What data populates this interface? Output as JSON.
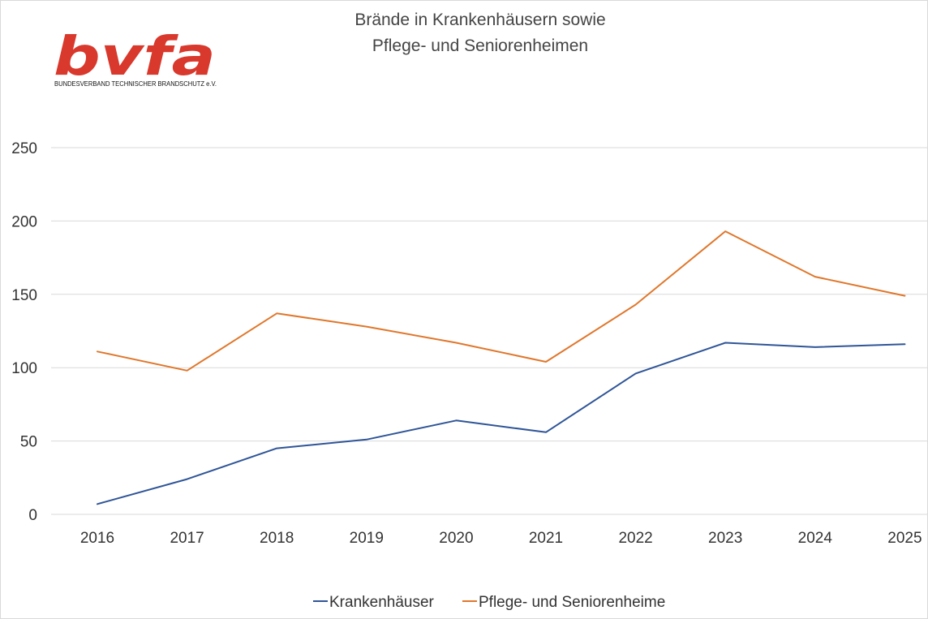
{
  "logo": {
    "word": "bvfa",
    "subtitle": "BUNDESVERBAND TECHNISCHER BRANDSCHUTZ e.V.",
    "color": "#d9382c"
  },
  "chart_data": {
    "type": "line",
    "title_lines": [
      "Brände in Krankenhäusern sowie",
      "Pflege- und Seniorenheimen"
    ],
    "xlabel": "",
    "ylabel": "",
    "categories": [
      "2016",
      "2017",
      "2018",
      "2019",
      "2020",
      "2021",
      "2022",
      "2023",
      "2024",
      "2025"
    ],
    "ylim": [
      0,
      250
    ],
    "yticks": [
      0,
      50,
      100,
      150,
      200,
      250
    ],
    "grid": true,
    "legend_position": "bottom",
    "series": [
      {
        "name": "Krankenhäuser",
        "color": "#2f5597",
        "values": [
          7,
          24,
          45,
          51,
          64,
          56,
          96,
          117,
          114,
          116
        ]
      },
      {
        "name": "Pflege- und Seniorenheime",
        "color": "#e0772b",
        "values": [
          111,
          98,
          137,
          128,
          117,
          104,
          143,
          193,
          162,
          149
        ]
      }
    ]
  }
}
